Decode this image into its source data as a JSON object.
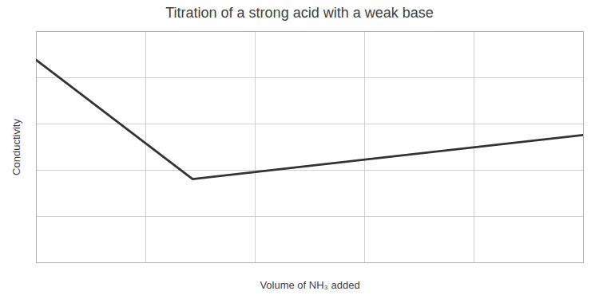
{
  "chart_data": {
    "type": "line",
    "title": "Titration of a strong acid with a weak base",
    "xlabel": "Volume of NH₃ added",
    "ylabel": "Conductivity",
    "x": [
      0,
      2,
      7
    ],
    "values": [
      0.92,
      0.38,
      0.58
    ],
    "color": "#333333",
    "xlim": [
      0,
      7
    ],
    "ylim": [
      0.0,
      1.05
    ],
    "xticks": [
      0,
      1.4,
      2.8,
      4.2,
      5.6,
      7
    ],
    "yticks": [
      0,
      0.21,
      0.42,
      0.63,
      0.84,
      1.05
    ],
    "grid": true,
    "tick_labels": false
  }
}
